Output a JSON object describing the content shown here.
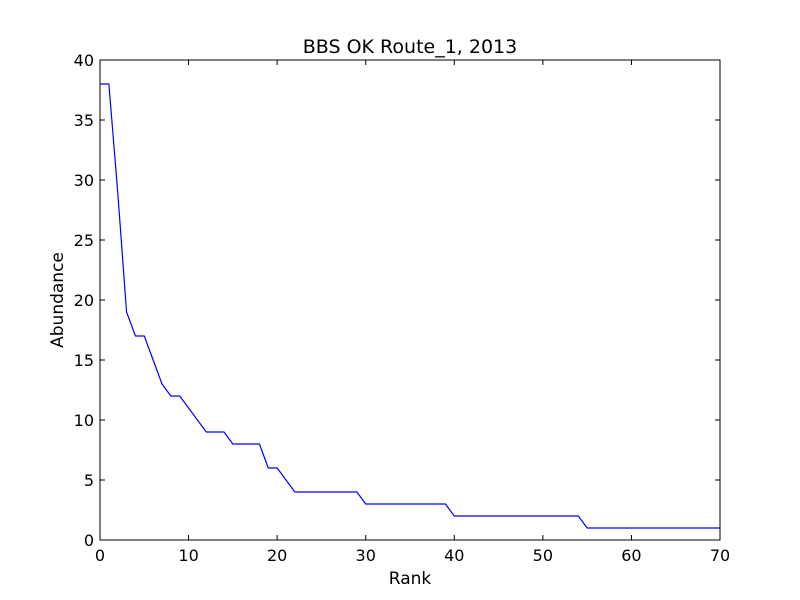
{
  "chart_data": {
    "type": "line",
    "title": "BBS OK Route_1, 2013",
    "xlabel": "Rank",
    "ylabel": "Abundance",
    "xlim": [
      0,
      70
    ],
    "ylim": [
      0,
      40
    ],
    "xticks": [
      0,
      10,
      20,
      30,
      40,
      50,
      60,
      70
    ],
    "yticks": [
      0,
      5,
      10,
      15,
      20,
      25,
      30,
      35,
      40
    ],
    "grid": false,
    "line_color": "#0000ff",
    "series": [
      {
        "x": [
          0,
          1,
          2,
          3,
          4,
          5,
          6,
          7,
          8,
          9,
          10,
          11,
          12,
          13,
          14,
          15,
          16,
          17,
          18,
          19,
          20,
          21,
          22,
          23,
          24,
          25,
          26,
          27,
          28,
          29,
          30,
          31,
          32,
          33,
          34,
          35,
          36,
          37,
          38,
          39,
          40,
          41,
          42,
          43,
          44,
          45,
          46,
          47,
          48,
          49,
          50,
          51,
          52,
          53,
          54,
          55,
          56,
          57,
          58,
          59,
          60,
          61,
          62,
          63,
          64,
          65,
          66,
          67,
          68,
          69,
          70
        ],
        "values": [
          38,
          38,
          29,
          19,
          17,
          17,
          15,
          13,
          12,
          12,
          11,
          10,
          9,
          9,
          9,
          8,
          8,
          8,
          8,
          6,
          6,
          5,
          4,
          4,
          4,
          4,
          4,
          4,
          4,
          4,
          3,
          3,
          3,
          3,
          3,
          3,
          3,
          3,
          3,
          3,
          2,
          2,
          2,
          2,
          2,
          2,
          2,
          2,
          2,
          2,
          2,
          2,
          2,
          2,
          2,
          1,
          1,
          1,
          1,
          1,
          1,
          1,
          1,
          1,
          1,
          1,
          1,
          1,
          1,
          1,
          1
        ]
      }
    ]
  }
}
